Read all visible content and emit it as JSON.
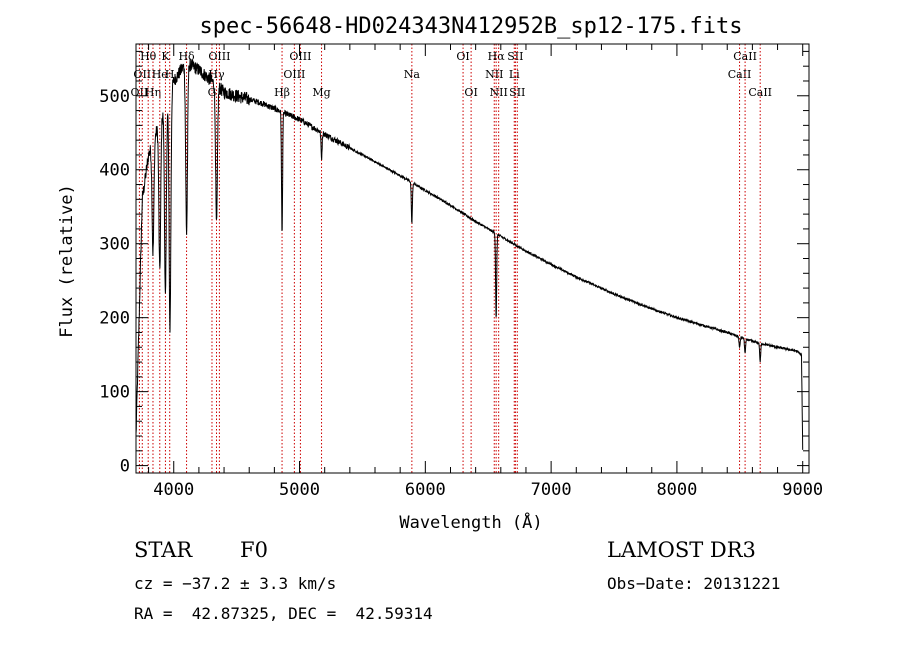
{
  "chart_data": {
    "type": "line",
    "title": "spec-56648-HD024343N412952B_sp12-175.fits",
    "xlabel": "Wavelength (Å)",
    "ylabel": "Flux (relative)",
    "xlim": [
      3700,
      9050
    ],
    "ylim": [
      -10,
      570
    ],
    "xticks": [
      4000,
      5000,
      6000,
      7000,
      8000,
      9000
    ],
    "yticks": [
      0,
      100,
      200,
      300,
      400,
      500
    ],
    "continuum": {
      "x": [
        3700,
        3750,
        3800,
        3900,
        4000,
        4100,
        4200,
        4300,
        4400,
        4500,
        4700,
        4900,
        5000,
        5200,
        5500,
        5800,
        6000,
        6200,
        6400,
        6600,
        6800,
        7000,
        7200,
        7500,
        7800,
        8000,
        8200,
        8400,
        8600,
        8800,
        8950,
        8990,
        9000
      ],
      "y": [
        40,
        360,
        420,
        470,
        520,
        545,
        535,
        520,
        505,
        500,
        490,
        475,
        468,
        448,
        420,
        392,
        372,
        352,
        330,
        310,
        290,
        272,
        255,
        232,
        212,
        200,
        190,
        180,
        168,
        160,
        155,
        150,
        20
      ]
    },
    "absorption_lines": [
      {
        "x": 3835,
        "depth": 150
      },
      {
        "x": 3889,
        "depth": 200
      },
      {
        "x": 3934,
        "depth": 260
      },
      {
        "x": 3970,
        "depth": 320
      },
      {
        "x": 4102,
        "depth": 230
      },
      {
        "x": 4340,
        "depth": 190
      },
      {
        "x": 4861,
        "depth": 165
      },
      {
        "x": 5175,
        "depth": 35
      },
      {
        "x": 5893,
        "depth": 55
      },
      {
        "x": 6563,
        "depth": 115
      },
      {
        "x": 8498,
        "depth": 15
      },
      {
        "x": 8542,
        "depth": 20
      },
      {
        "x": 8662,
        "depth": 25
      }
    ],
    "line_markers": [
      {
        "x": 3727,
        "label": "OII",
        "row": 2
      },
      {
        "x": 3750,
        "label": "OII",
        "row": 1
      },
      {
        "x": 3797,
        "label": "Hθ",
        "row": 0
      },
      {
        "x": 3835,
        "label": "Hη",
        "row": 2
      },
      {
        "x": 3889,
        "label": "He",
        "row": 1
      },
      {
        "x": 3934,
        "label": "K",
        "row": 0
      },
      {
        "x": 3968,
        "label": "H",
        "row": 1
      },
      {
        "x": 4102,
        "label": "Hδ",
        "row": 0
      },
      {
        "x": 4304,
        "label": "G",
        "row": 2
      },
      {
        "x": 4340,
        "label": "Hγ",
        "row": 1
      },
      {
        "x": 4363,
        "label": "OIII",
        "row": 0
      },
      {
        "x": 4861,
        "label": "Hβ",
        "row": 2
      },
      {
        "x": 4959,
        "label": "OIII",
        "row": 1
      },
      {
        "x": 5007,
        "label": "OIII",
        "row": 0
      },
      {
        "x": 5175,
        "label": "Mg",
        "row": 2
      },
      {
        "x": 5893,
        "label": "Na",
        "row": 1
      },
      {
        "x": 6300,
        "label": "OI",
        "row": 0
      },
      {
        "x": 6364,
        "label": "OI",
        "row": 2
      },
      {
        "x": 6548,
        "label": "NII",
        "row": 1
      },
      {
        "x": 6563,
        "label": "Hα",
        "row": 0
      },
      {
        "x": 6583,
        "label": "NII",
        "row": 2
      },
      {
        "x": 6707,
        "label": "Li",
        "row": 1
      },
      {
        "x": 6716,
        "label": "SII",
        "row": 0
      },
      {
        "x": 6731,
        "label": "SII",
        "row": 2
      },
      {
        "x": 8498,
        "label": "CaII",
        "row": 1
      },
      {
        "x": 8542,
        "label": "CaII",
        "row": 0
      },
      {
        "x": 8662,
        "label": "CaII",
        "row": 2
      }
    ]
  },
  "info": {
    "class": "STAR",
    "subclass": "F0",
    "survey": "LAMOST DR3",
    "cz": "cz = −37.2 ± 3.3 km/s",
    "obs_date": "Obs−Date: 20131221",
    "coords": "RA =  42.87325, DEC =  42.59314"
  },
  "colors": {
    "spectrum": "#000000",
    "marker": "#cc0000"
  }
}
